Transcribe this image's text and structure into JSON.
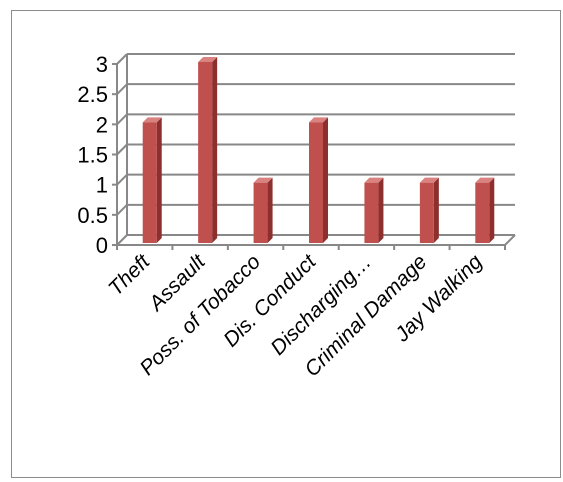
{
  "chart_data": {
    "type": "bar",
    "title": "",
    "xlabel": "",
    "ylabel": "",
    "categories": [
      "Theft",
      "Assault",
      "Poss. of Tobacco",
      "Dis. Conduct",
      "Discharging…",
      "Criminal Damage",
      "Jay Walking"
    ],
    "values": [
      2,
      3,
      1,
      2,
      1,
      1,
      1
    ],
    "y_ticks": [
      "0",
      "0.5",
      "1",
      "1.5",
      "2",
      "2.5",
      "3"
    ],
    "ylim": [
      0,
      3
    ],
    "grid": true,
    "legend": "none",
    "style": "3d-column",
    "colors": {
      "bar_front": "#c0504d",
      "bar_side": "#8c2f2d",
      "bar_top": "#d9827f",
      "grid": "#888888",
      "frame": "#8c8c8c"
    }
  }
}
